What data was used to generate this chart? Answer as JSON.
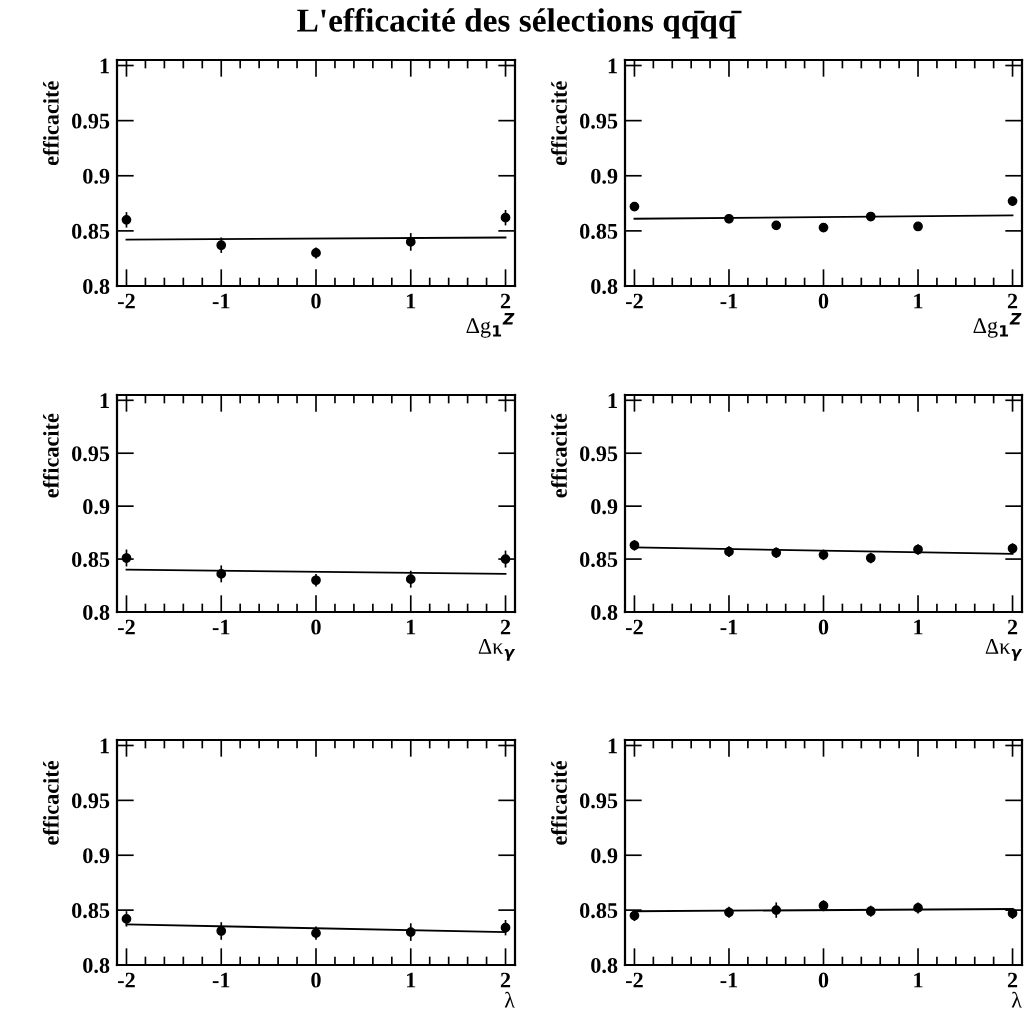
{
  "chart_data": [
    {
      "type": "scatter",
      "title": "L'efficacité des sélections qq̄qq̄",
      "xlabel": "Δg$_{1}$$^{Z}$",
      "ylabel": "efficacité",
      "xlim": [
        -2.1,
        2.1
      ],
      "ylim": [
        0.8,
        1.005
      ],
      "xticks": [
        -2,
        -1,
        0,
        1,
        2
      ],
      "yticks": [
        0.8,
        0.85,
        0.9,
        0.95,
        1
      ],
      "grid": false,
      "legend": false,
      "series": [
        {
          "color": "#000000",
          "marker": "circle",
          "x": [
            -2,
            -1,
            0,
            1,
            2
          ],
          "values": [
            0.86,
            0.837,
            0.83,
            0.84,
            0.862
          ],
          "errors": [
            0.007,
            0.007,
            0.005,
            0.008,
            0.007
          ]
        },
        {
          "type": "line",
          "color": "#000000",
          "marker": "none",
          "x": [
            -2,
            2
          ],
          "values": [
            0.842,
            0.844
          ]
        }
      ]
    },
    {
      "type": "scatter",
      "xlabel": "Δg$_{1}$$^{Z}$",
      "ylabel": "efficacité",
      "xlim": [
        -2.1,
        2.1
      ],
      "ylim": [
        0.8,
        1.005
      ],
      "xticks": [
        -2,
        -1,
        0,
        1,
        2
      ],
      "yticks": [
        0.8,
        0.85,
        0.9,
        0.95,
        1
      ],
      "grid": false,
      "legend": false,
      "series": [
        {
          "color": "#000000",
          "marker": "circle",
          "x": [
            -2,
            -1,
            -0.5,
            0,
            0.5,
            1,
            2
          ],
          "values": [
            0.872,
            0.861,
            0.855,
            0.853,
            0.863,
            0.854,
            0.877
          ],
          "errors": [
            0.004,
            0.004,
            0.004,
            0.004,
            0.004,
            0.004,
            0.004
          ]
        },
        {
          "type": "line",
          "color": "#000000",
          "marker": "none",
          "x": [
            -2,
            2
          ],
          "values": [
            0.861,
            0.864
          ]
        }
      ]
    },
    {
      "type": "scatter",
      "xlabel": "Δκ$_{γ}$",
      "ylabel": "efficacité",
      "xlim": [
        -2.1,
        2.1
      ],
      "ylim": [
        0.8,
        1.005
      ],
      "xticks": [
        -2,
        -1,
        0,
        1,
        2
      ],
      "yticks": [
        0.8,
        0.85,
        0.9,
        0.95,
        1
      ],
      "grid": false,
      "legend": false,
      "series": [
        {
          "color": "#000000",
          "marker": "circle",
          "x": [
            -2,
            -1,
            0,
            1,
            2
          ],
          "values": [
            0.851,
            0.836,
            0.83,
            0.831,
            0.85
          ],
          "errors": [
            0.008,
            0.008,
            0.006,
            0.008,
            0.008
          ]
        },
        {
          "type": "line",
          "color": "#000000",
          "marker": "none",
          "x": [
            -2,
            2
          ],
          "values": [
            0.84,
            0.836
          ]
        }
      ]
    },
    {
      "type": "scatter",
      "xlabel": "Δκ$_{γ}$",
      "ylabel": "efficacité",
      "xlim": [
        -2.1,
        2.1
      ],
      "ylim": [
        0.8,
        1.005
      ],
      "xticks": [
        -2,
        -1,
        0,
        1,
        2
      ],
      "yticks": [
        0.8,
        0.85,
        0.9,
        0.95,
        1
      ],
      "grid": false,
      "legend": false,
      "series": [
        {
          "color": "#000000",
          "marker": "circle",
          "x": [
            -2,
            -1,
            -0.5,
            0,
            0.5,
            1,
            2
          ],
          "values": [
            0.863,
            0.857,
            0.856,
            0.854,
            0.851,
            0.859,
            0.86
          ],
          "errors": [
            0.005,
            0.005,
            0.005,
            0.005,
            0.005,
            0.005,
            0.005
          ]
        },
        {
          "type": "line",
          "color": "#000000",
          "marker": "none",
          "x": [
            -2,
            2
          ],
          "values": [
            0.861,
            0.855
          ]
        }
      ]
    },
    {
      "type": "scatter",
      "xlabel": "λ",
      "ylabel": "efficacité",
      "xlim": [
        -2.1,
        2.1
      ],
      "ylim": [
        0.8,
        1.005
      ],
      "xticks": [
        -2,
        -1,
        0,
        1,
        2
      ],
      "yticks": [
        0.8,
        0.85,
        0.9,
        0.95,
        1
      ],
      "grid": false,
      "legend": false,
      "series": [
        {
          "color": "#000000",
          "marker": "circle",
          "x": [
            -2,
            -1,
            0,
            1,
            2
          ],
          "values": [
            0.842,
            0.831,
            0.829,
            0.83,
            0.834
          ],
          "errors": [
            0.007,
            0.008,
            0.006,
            0.008,
            0.007
          ]
        },
        {
          "type": "line",
          "color": "#000000",
          "marker": "none",
          "x": [
            -2,
            2
          ],
          "values": [
            0.837,
            0.83
          ]
        }
      ]
    },
    {
      "type": "scatter",
      "xlabel": "λ",
      "ylabel": "efficacité",
      "xlim": [
        -2.1,
        2.1
      ],
      "ylim": [
        0.8,
        1.005
      ],
      "xticks": [
        -2,
        -1,
        0,
        1,
        2
      ],
      "yticks": [
        0.8,
        0.85,
        0.9,
        0.95,
        1
      ],
      "grid": false,
      "legend": false,
      "series": [
        {
          "color": "#000000",
          "marker": "circle",
          "x": [
            -2,
            -1,
            -0.5,
            0,
            0.5,
            1,
            2
          ],
          "values": [
            0.845,
            0.848,
            0.85,
            0.854,
            0.849,
            0.852,
            0.847
          ],
          "errors": [
            0.005,
            0.005,
            0.007,
            0.005,
            0.005,
            0.005,
            0.005
          ]
        },
        {
          "type": "line",
          "color": "#000000",
          "marker": "none",
          "x": [
            -2,
            2
          ],
          "values": [
            0.849,
            0.851
          ]
        }
      ]
    }
  ]
}
